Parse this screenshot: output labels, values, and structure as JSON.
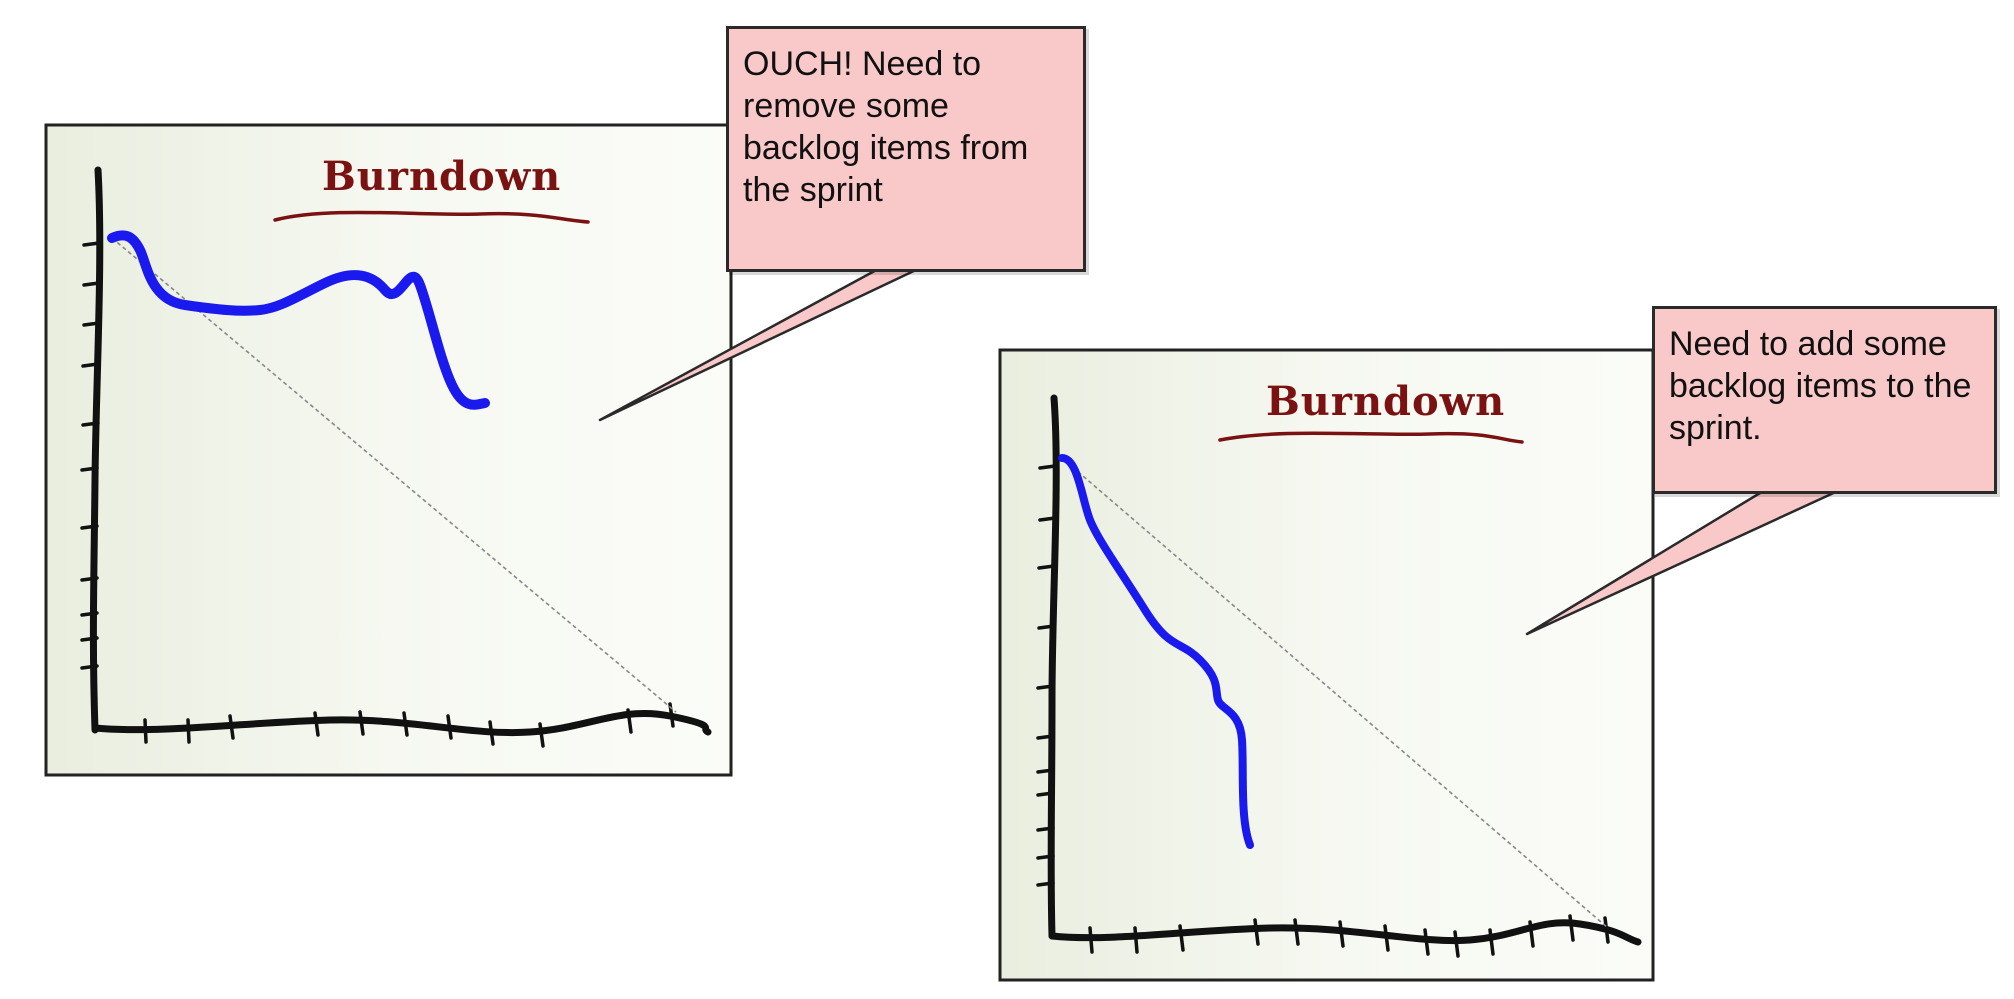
{
  "panels": [
    {
      "id": "left",
      "title": "Burndown",
      "callout": "OUCH! Need to\nremove some\nbacklog items from\nthe sprint"
    },
    {
      "id": "right",
      "title": "Burndown",
      "callout": "Need to add some\nbacklog items to the\nsprint."
    }
  ],
  "colors": {
    "panel_fill": "#f1f4ea",
    "panel_border": "#222222",
    "axis": "#111111",
    "burndown_line": "#1a1aee",
    "ideal_line": "#888888",
    "title": "#7a1212",
    "callout_fill": "#f9c9c9"
  },
  "chart_data": [
    {
      "type": "line",
      "title": "Burndown",
      "xlabel": "",
      "ylabel": "",
      "series": [
        {
          "values_x": [
            0,
            0.6,
            1.5,
            3,
            4.5,
            6,
            7.5,
            8.6,
            9.8,
            11,
            12,
            13
          ],
          "values_y": [
            8.2,
            8.1,
            7.0,
            6.7,
            6.6,
            7.1,
            7.5,
            7.1,
            7.4,
            5.6,
            4.5,
            4.3
          ]
        },
        {
          "values_x": [
            0,
            25
          ],
          "values_y": [
            8.2,
            0
          ]
        }
      ],
      "xlim": [
        0,
        25
      ],
      "ylim": [
        0,
        10
      ]
    },
    {
      "type": "line",
      "title": "Burndown",
      "xlabel": "",
      "ylabel": "",
      "series": [
        {
          "values_x": [
            0,
            0.5,
            1.2,
            2.5,
            4,
            5.2,
            6.5,
            7.4,
            8.2,
            8.4,
            8.6,
            8.7
          ],
          "values_y": [
            8.2,
            7.8,
            6.7,
            5.6,
            4.6,
            4.1,
            3.3,
            2.6,
            2.3,
            1.9,
            0.9,
            0.3
          ]
        },
        {
          "values_x": [
            0,
            25
          ],
          "values_y": [
            8.2,
            0
          ]
        }
      ],
      "xlim": [
        0,
        25
      ],
      "ylim": [
        0,
        10
      ]
    }
  ]
}
